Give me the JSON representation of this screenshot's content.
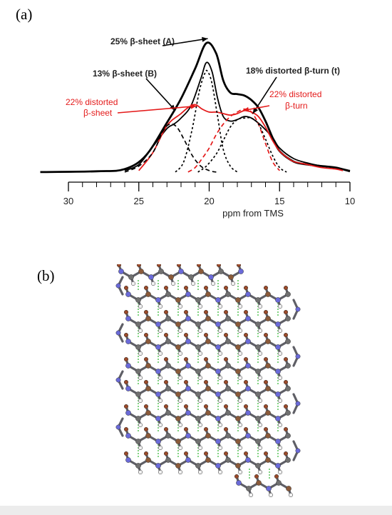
{
  "panel_a": {
    "label": "(a)"
  },
  "panel_b": {
    "label": "(b)"
  },
  "colors": {
    "black": "#000000",
    "red": "#e41a1a"
  },
  "chart_data": {
    "type": "line",
    "title": "",
    "xlabel": "ppm from TMS",
    "ylabel": "",
    "xlim": [
      30,
      10
    ],
    "x_reversed": true,
    "xticks": [
      30,
      25,
      20,
      15,
      10
    ],
    "grid": false,
    "annotations": [
      {
        "text": "25% β-sheet (A)",
        "color": "#000000",
        "points_to": [
          20.1,
          0.9
        ]
      },
      {
        "text": "13% β-sheet (B)",
        "color": "#000000",
        "points_to": [
          22.4,
          0.42
        ]
      },
      {
        "text": "18% distorted β-turn (t)",
        "color": "#000000",
        "points_to": [
          16.9,
          0.4
        ]
      },
      {
        "text": "22% distorted",
        "color": "#e41a1a",
        "line": 1,
        "points_to": [
          20.9,
          0.45
        ]
      },
      {
        "text": "β-sheet",
        "color": "#e41a1a",
        "line": 2
      },
      {
        "text": "22% distorted",
        "color": "#e41a1a",
        "line": 1,
        "points_to": [
          17.6,
          0.42
        ]
      },
      {
        "text": "β-turn",
        "color": "#e41a1a",
        "line": 2
      }
    ],
    "series": [
      {
        "role": "total",
        "color": "#000000",
        "width": 2.8,
        "dash": "",
        "points": [
          [
            32,
            0.01
          ],
          [
            28,
            0.015
          ],
          [
            26,
            0.03
          ],
          [
            24.5,
            0.12
          ],
          [
            23,
            0.34
          ],
          [
            22,
            0.5
          ],
          [
            21,
            0.7
          ],
          [
            20.2,
            0.87
          ],
          [
            19.5,
            0.8
          ],
          [
            19,
            0.62
          ],
          [
            18.5,
            0.54
          ],
          [
            18,
            0.53
          ],
          [
            17.5,
            0.52
          ],
          [
            17,
            0.49
          ],
          [
            16.5,
            0.44
          ],
          [
            16,
            0.35
          ],
          [
            15.5,
            0.24
          ],
          [
            15,
            0.15
          ],
          [
            14,
            0.08
          ],
          [
            13,
            0.06
          ],
          [
            12,
            0.05
          ],
          [
            11,
            0.04
          ],
          [
            10,
            0.015
          ]
        ]
      },
      {
        "role": "sum",
        "color": "#000000",
        "width": 1.8,
        "dash": "",
        "points": [
          [
            26,
            0.02
          ],
          [
            25,
            0.06
          ],
          [
            24,
            0.18
          ],
          [
            23,
            0.3
          ],
          [
            22.5,
            0.33
          ],
          [
            22,
            0.37
          ],
          [
            21.3,
            0.45
          ],
          [
            20.6,
            0.63
          ],
          [
            20.2,
            0.74
          ],
          [
            19.8,
            0.68
          ],
          [
            19.4,
            0.5
          ],
          [
            19,
            0.38
          ],
          [
            18.5,
            0.35
          ],
          [
            18,
            0.36
          ],
          [
            17.5,
            0.38
          ],
          [
            17,
            0.37
          ],
          [
            16.3,
            0.32
          ],
          [
            15.5,
            0.24
          ],
          [
            15,
            0.17
          ],
          [
            14,
            0.1
          ],
          [
            13,
            0.07
          ],
          [
            12,
            0.05
          ],
          [
            11,
            0.04
          ],
          [
            10,
            0.02
          ]
        ]
      },
      {
        "role": "distorted-beta-sheet",
        "color": "#e41a1a",
        "width": 1.8,
        "dash": "",
        "points": [
          [
            25,
            0.02
          ],
          [
            24,
            0.14
          ],
          [
            23,
            0.32
          ],
          [
            22,
            0.4
          ],
          [
            21.5,
            0.44
          ],
          [
            21,
            0.46
          ],
          [
            20.5,
            0.43
          ],
          [
            20,
            0.41
          ],
          [
            19.5,
            0.41
          ],
          [
            19,
            0.4
          ],
          [
            18.5,
            0.39
          ],
          [
            18,
            0.4
          ],
          [
            17.5,
            0.42
          ],
          [
            17,
            0.41
          ],
          [
            16.5,
            0.38
          ],
          [
            16,
            0.31
          ],
          [
            15.5,
            0.22
          ],
          [
            15,
            0.15
          ],
          [
            14.5,
            0.11
          ],
          [
            14,
            0.08
          ],
          [
            13,
            0.06
          ],
          [
            12,
            0.04
          ],
          [
            11,
            0.03
          ],
          [
            10.5,
            0.02
          ]
        ]
      },
      {
        "role": "beta-sheet-B",
        "color": "#000000",
        "width": 1.7,
        "dash": "6,4",
        "points": [
          [
            26,
            0.01
          ],
          [
            25,
            0.05
          ],
          [
            24,
            0.14
          ],
          [
            23.3,
            0.28
          ],
          [
            22.8,
            0.33
          ],
          [
            22.3,
            0.31
          ],
          [
            21.8,
            0.23
          ],
          [
            21.2,
            0.12
          ],
          [
            20.6,
            0.05
          ],
          [
            20,
            0.02
          ],
          [
            19.5,
            0.01
          ]
        ]
      },
      {
        "role": "beta-sheet-A",
        "color": "#000000",
        "width": 1.7,
        "dash": "3,3",
        "points": [
          [
            22.4,
            0.01
          ],
          [
            21.8,
            0.08
          ],
          [
            21.2,
            0.3
          ],
          [
            20.7,
            0.55
          ],
          [
            20.3,
            0.67
          ],
          [
            20.1,
            0.68
          ],
          [
            19.8,
            0.6
          ],
          [
            19.4,
            0.38
          ],
          [
            19,
            0.16
          ],
          [
            18.5,
            0.05
          ],
          [
            18,
            0.01
          ]
        ]
      },
      {
        "role": "distorted-beta-turn-red",
        "color": "#e41a1a",
        "width": 1.7,
        "dash": "6,4",
        "points": [
          [
            21.5,
            0.01
          ],
          [
            21,
            0.04
          ],
          [
            20.5,
            0.1
          ],
          [
            20,
            0.17
          ],
          [
            19.5,
            0.26
          ],
          [
            19,
            0.33
          ],
          [
            18.5,
            0.38
          ],
          [
            18,
            0.41
          ],
          [
            17.5,
            0.43
          ],
          [
            17,
            0.41
          ],
          [
            16.5,
            0.33
          ],
          [
            16,
            0.2
          ],
          [
            15.5,
            0.08
          ],
          [
            15,
            0.02
          ]
        ]
      },
      {
        "role": "distorted-beta-turn-t",
        "color": "#000000",
        "width": 1.7,
        "dash": "3,3",
        "points": [
          [
            20.8,
            0.01
          ],
          [
            20.2,
            0.05
          ],
          [
            19.5,
            0.13
          ],
          [
            19,
            0.22
          ],
          [
            18.5,
            0.31
          ],
          [
            18,
            0.36
          ],
          [
            17.5,
            0.37
          ],
          [
            17,
            0.37
          ],
          [
            16.5,
            0.33
          ],
          [
            16,
            0.23
          ],
          [
            15.5,
            0.12
          ],
          [
            15,
            0.04
          ],
          [
            14.5,
            0.01
          ]
        ]
      }
    ]
  }
}
